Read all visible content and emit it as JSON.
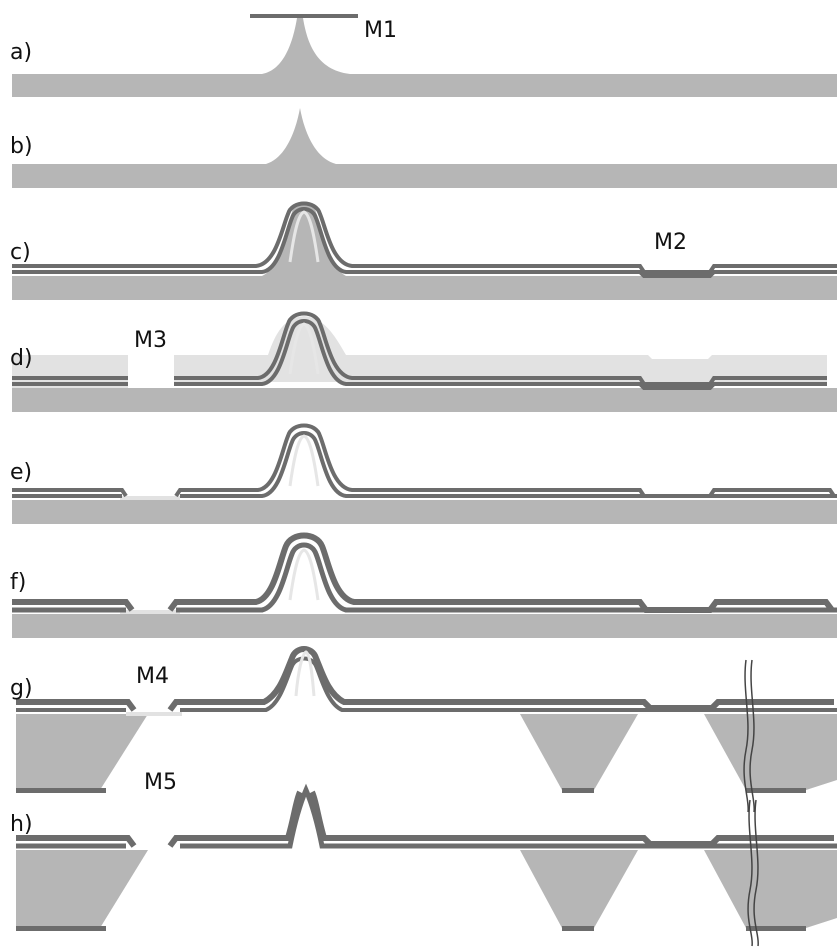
{
  "figure": {
    "colors": {
      "substrate": "#b6b6b6",
      "film": "#6c6c6c",
      "film_light": "#e6e6e6",
      "resist": "#e2e2e2",
      "mask": "#6c6c6c",
      "label": "#111111",
      "background": "#ffffff"
    },
    "steps": [
      {
        "id": "a",
        "label": "a)"
      },
      {
        "id": "b",
        "label": "b)"
      },
      {
        "id": "c",
        "label": "c)"
      },
      {
        "id": "d",
        "label": "d)"
      },
      {
        "id": "e",
        "label": "e)"
      },
      {
        "id": "f",
        "label": "f)"
      },
      {
        "id": "g",
        "label": "g)"
      },
      {
        "id": "h",
        "label": "h)"
      }
    ],
    "masks": [
      {
        "id": "m1",
        "label": "M1"
      },
      {
        "id": "m2",
        "label": "M2"
      },
      {
        "id": "m3",
        "label": "M3"
      },
      {
        "id": "m4",
        "label": "M4"
      },
      {
        "id": "m5",
        "label": "M5"
      }
    ]
  }
}
